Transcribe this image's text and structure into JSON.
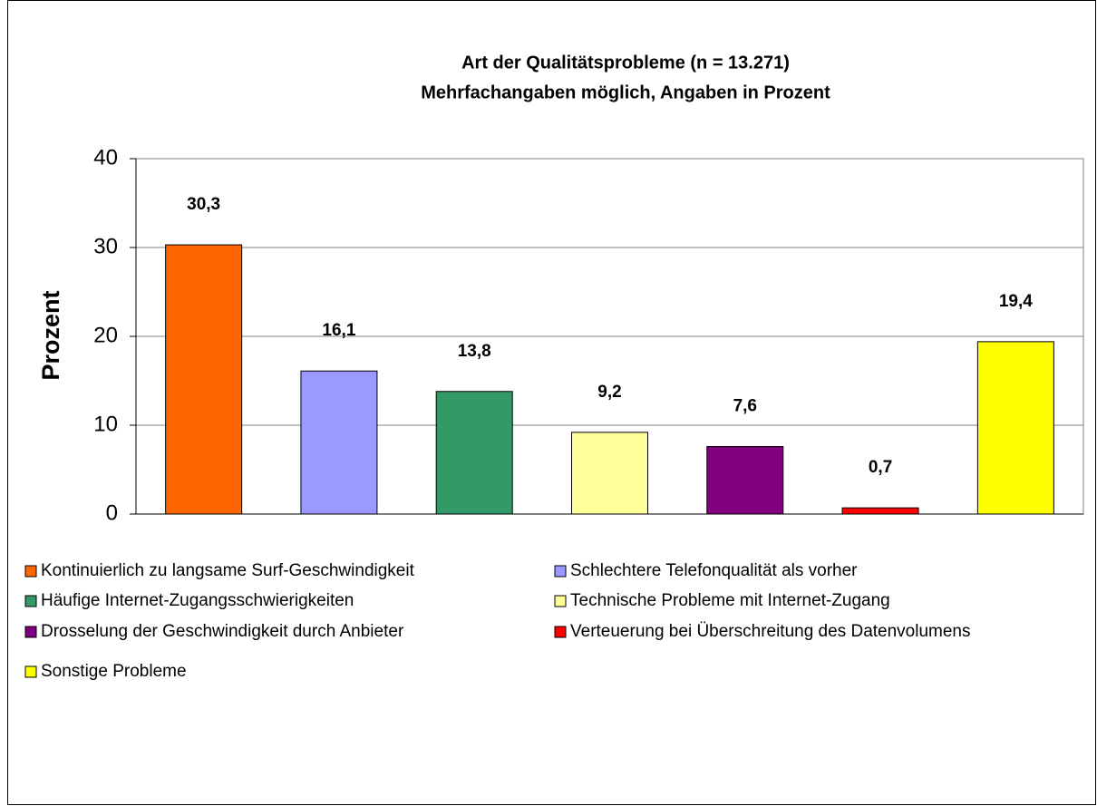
{
  "chart_data": {
    "type": "bar",
    "title": "Art der Qualitätsprobleme (n = 13.271)",
    "subtitle": "Mehrfachangaben möglich, Angaben in Prozent",
    "y_label": "Prozent",
    "categories": [
      "Kontinuierlich zu langsame Surf-Geschwindigkeit",
      "Schlechtere Telefonqualität als vorher",
      "Häufige Internet-Zugangsschwierigkeiten",
      "Technische Probleme mit Internet-Zugang",
      "Drosselung der Geschwindigkeit durch Anbieter",
      "Verteuerung bei Überschreitung des Datenvolumens",
      "Sonstige Probleme"
    ],
    "values": [
      30.3,
      16.1,
      13.8,
      9.2,
      7.6,
      0.7,
      19.4
    ],
    "value_labels": [
      "30,3",
      "16,1",
      "13,8",
      "9,2",
      "7,6",
      "0,7",
      "19,4"
    ],
    "colors": [
      "#ff6600",
      "#9999ff",
      "#339966",
      "#ffff99",
      "#800080",
      "#ff0000",
      "#ffff00"
    ],
    "ylim": [
      0,
      40
    ],
    "yticks": [
      0,
      10,
      20,
      30,
      40
    ],
    "grid": true,
    "legend": "bottom"
  }
}
